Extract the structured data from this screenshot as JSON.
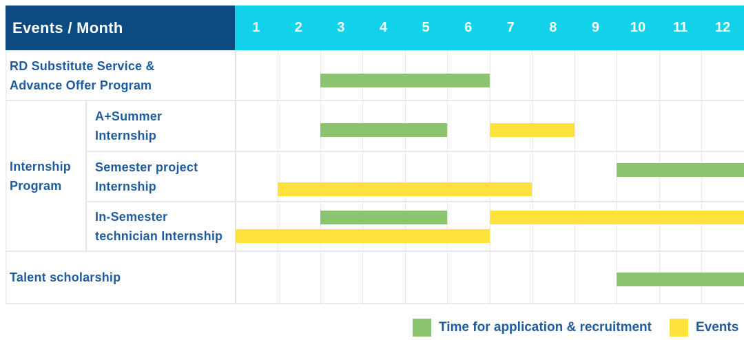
{
  "header": {
    "title": "Events / Month",
    "months": [
      "1",
      "2",
      "3",
      "4",
      "5",
      "6",
      "7",
      "8",
      "9",
      "10",
      "11",
      "12"
    ]
  },
  "labels": {
    "rd": [
      "RD Substitute Service &",
      "Advance Offer Program"
    ],
    "group": [
      "Internship",
      "Program"
    ],
    "a_summer": [
      "A+Summer",
      "Internship"
    ],
    "semester": [
      "Semester project",
      "Internship"
    ],
    "in_semester": [
      "In-Semester",
      "technician Internship"
    ],
    "talent": [
      "Talent scholarship"
    ]
  },
  "colors": {
    "header_bg": "#0d4a82",
    "months_bg": "#11d2ea",
    "green": "#8bc46e",
    "yellow": "#ffe23c",
    "label_text": "#1e5c9f"
  },
  "legend": {
    "items": [
      {
        "label": "Time for application & recruitment",
        "color_key": "green"
      },
      {
        "label": "Events",
        "color_key": "yellow"
      }
    ]
  },
  "chart_data": {
    "type": "gantt",
    "x_axis": {
      "label": "Month",
      "ticks": [
        "1",
        "2",
        "3",
        "4",
        "5",
        "6",
        "7",
        "8",
        "9",
        "10",
        "11",
        "12"
      ],
      "range": [
        1,
        12
      ]
    },
    "series_legend": [
      {
        "name": "Time for application & recruitment",
        "color_key": "green"
      },
      {
        "name": "Events",
        "color_key": "yellow"
      }
    ],
    "rows": [
      {
        "name": "RD Substitute Service & Advance Offer Program",
        "group": null,
        "bars": [
          {
            "series": "Time for application & recruitment",
            "color_key": "green",
            "start_month": 3,
            "end_month": 6,
            "lane": "single"
          }
        ]
      },
      {
        "name": "A+Summer Internship",
        "group": "Internship Program",
        "bars": [
          {
            "series": "Time for application & recruitment",
            "color_key": "green",
            "start_month": 3,
            "end_month": 5,
            "lane": "single"
          },
          {
            "series": "Events",
            "color_key": "yellow",
            "start_month": 7,
            "end_month": 8,
            "lane": "single"
          }
        ]
      },
      {
        "name": "Semester project Internship",
        "group": "Internship Program",
        "bars": [
          {
            "series": "Time for application & recruitment",
            "color_key": "green",
            "start_month": 10,
            "end_month": 12,
            "lane": "top"
          },
          {
            "series": "Events",
            "color_key": "yellow",
            "start_month": 2,
            "end_month": 7,
            "lane": "bottom"
          }
        ]
      },
      {
        "name": "In-Semester technician Internship",
        "group": "Internship Program",
        "bars": [
          {
            "series": "Time for application & recruitment",
            "color_key": "green",
            "start_month": 3,
            "end_month": 5,
            "lane": "top"
          },
          {
            "series": "Events",
            "color_key": "yellow",
            "start_month": 7,
            "end_month": 12,
            "lane": "top"
          },
          {
            "series": "Events",
            "color_key": "yellow",
            "start_month": 1,
            "end_month": 6,
            "lane": "bottom"
          }
        ]
      },
      {
        "name": "Talent scholarship",
        "group": null,
        "bars": [
          {
            "series": "Time for application & recruitment",
            "color_key": "green",
            "start_month": 10,
            "end_month": 12,
            "lane": "single"
          }
        ]
      }
    ]
  }
}
